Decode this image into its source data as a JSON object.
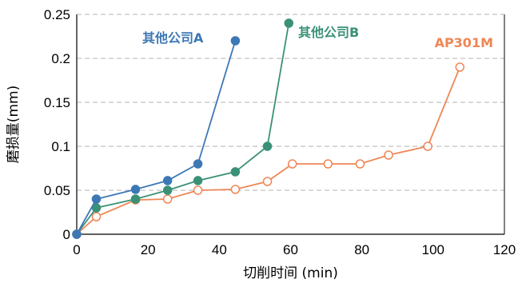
{
  "chart_data": {
    "type": "line",
    "title": "",
    "xlabel": "切削时间 (min)",
    "ylabel": "磨损量(mm)",
    "xlim": [
      0,
      120
    ],
    "ylim": [
      0,
      0.25
    ],
    "x_ticks": [
      "0",
      "20",
      "40",
      "60",
      "80",
      "100",
      "120"
    ],
    "y_ticks": [
      "0",
      "0.05",
      "0.1",
      "0.15",
      "0.2",
      "0.25"
    ],
    "grid": "horizontal dashed",
    "series": [
      {
        "name": "其他公司A",
        "color": "#3d78b5",
        "marker": "filled-circle",
        "x": [
          0,
          5.5,
          16.5,
          25.5,
          34,
          44.5
        ],
        "y": [
          0,
          0.04,
          0.051,
          0.061,
          0.08,
          0.22
        ]
      },
      {
        "name": "其他公司B",
        "color": "#3a9177",
        "marker": "filled-circle",
        "x": [
          0,
          5.5,
          16.5,
          25.5,
          34,
          44.5,
          53.5,
          59.5
        ],
        "y": [
          0,
          0.03,
          0.04,
          0.05,
          0.061,
          0.071,
          0.1,
          0.24
        ]
      },
      {
        "name": "AP301M",
        "color": "#ee8756",
        "marker": "open-circle",
        "x": [
          0,
          5.5,
          16.5,
          25.5,
          34,
          44.5,
          53.5,
          60.5,
          70.5,
          79.5,
          87.5,
          98.5,
          107.5
        ],
        "y": [
          0,
          0.02,
          0.039,
          0.04,
          0.05,
          0.051,
          0.06,
          0.08,
          0.08,
          0.08,
          0.09,
          0.1,
          0.19
        ]
      }
    ]
  }
}
